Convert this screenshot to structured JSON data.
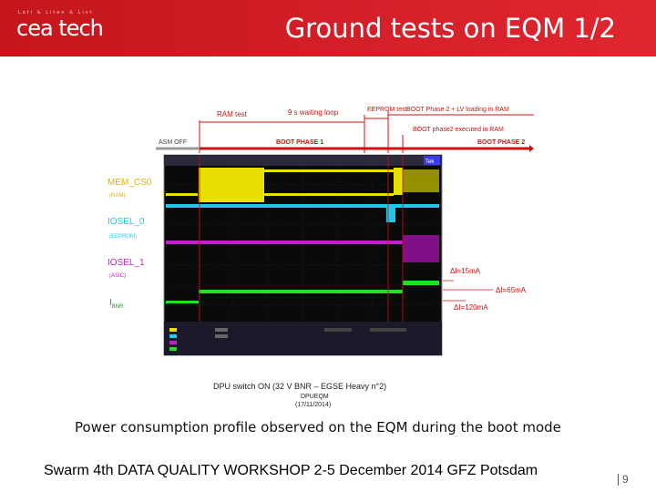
{
  "header": {
    "logo_tagline": "Leti & Liten & List",
    "logo_text": "cea tech",
    "title": "Ground tests on EQM 1/2"
  },
  "figure": {
    "annotations": {
      "ram_test": "RAM test",
      "waiting_loop": "9 s waiting loop",
      "eeprom_test": "EEPROM test",
      "boot_phase2_lv": "BOOT Phase 2 + LV loading in RAM",
      "asm_off": "ASM OFF",
      "boot_phase1": "BOOT PHASE 1",
      "boot_phase2_executed": "BOOT phase2 executed in RAM",
      "boot_phase2": "BOOT PHASE 2"
    },
    "signals": {
      "mem_cs0": "MEM_CS0",
      "mem_cs0_sub": "(RAM)",
      "iosel0": "IOSEL_0",
      "iosel0_sub": "(EEPROM)",
      "iosel1": "IOSEL_1",
      "iosel1_sub": "(ASIC)",
      "ibnr": "I",
      "ibnr_sub": "BNR"
    },
    "deltas": {
      "d15": "ΔI=15mA",
      "d65": "ΔI=65mA",
      "d120": "ΔI=120mA"
    },
    "subtitle_line1": "DPU switch ON (32 V BNR – EGSE Heavy n°2)",
    "subtitle_line2": "DPUEQM",
    "subtitle_line3": "(17/11/2014)",
    "scope_badge": "Tek",
    "colors": {
      "yellow": "#e8e000",
      "cyan": "#1ec8e6",
      "magenta": "#c020c8",
      "green": "#22e022",
      "red": "#d01010"
    }
  },
  "caption": "Power consumption profile observed on the EQM during the boot mode",
  "footer": "Swarm 4th DATA QUALITY WORKSHOP 2-5 December 2014 GFZ Potsdam",
  "page_number": "9"
}
